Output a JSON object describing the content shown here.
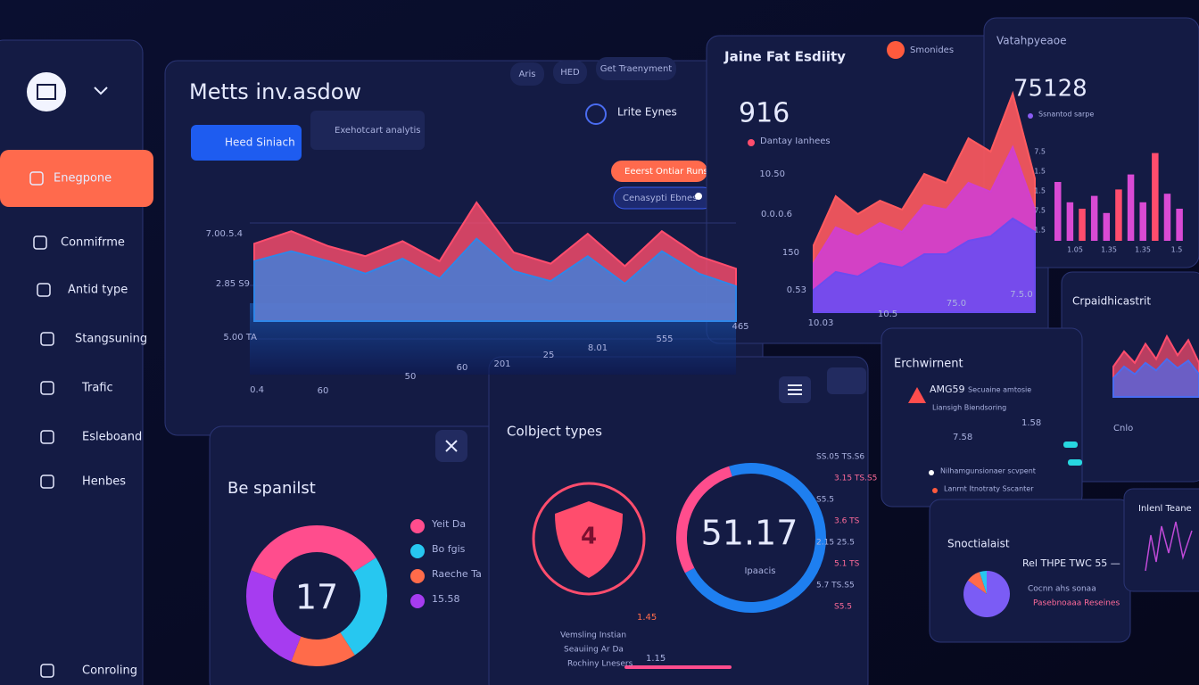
{
  "sidebar": {
    "items": [
      "Enegpone",
      "Conmifrme",
      "Antid type",
      "Stangsuning",
      "Trafic",
      "Esleboand",
      "Henbes",
      "Conroling"
    ]
  },
  "main_panel": {
    "title": "Metts inv.asdow",
    "buttons": [
      "Heed Siniach",
      "Exehotcart analytis"
    ],
    "chips": [
      "Aris",
      "HED",
      "Get Traenyment"
    ],
    "dropdown": "Lrite Eynes",
    "chart": {
      "ylim": [
        0,
        100
      ],
      "y_labels": [
        "7.00.5.4",
        "2.85 S9",
        "5.00 TA",
        "0.4"
      ],
      "x_labels": [
        "60",
        "50",
        "60",
        "201",
        "25",
        "8.01",
        "555",
        "465"
      ],
      "series": [
        {
          "name": "Eeerst Ontiar Runst",
          "color": "#ff4d6d",
          "values": [
            62,
            72,
            60,
            52,
            64,
            48,
            95,
            55,
            46,
            70,
            44,
            72,
            52,
            42
          ]
        },
        {
          "name": "Cenasypti Ebnes",
          "color": "#2f86e8",
          "values": [
            48,
            56,
            48,
            38,
            50,
            34,
            66,
            40,
            32,
            52,
            30,
            56,
            38,
            28
          ]
        }
      ]
    }
  },
  "activity_panel": {
    "title": "Jaine Fat Esdiity",
    "badge": "Smonides",
    "value": "916",
    "subtitle": "Dantay Ianhees",
    "chart": {
      "ylim": [
        0,
        100
      ],
      "y_labels": [
        "10.50",
        "0.0.0.6",
        "150",
        "0.53"
      ],
      "x_labels": [
        "10.03",
        "10.5",
        "75.0",
        "7.5.0"
      ],
      "series": [
        {
          "color": "#ff5a5f",
          "values": [
            30,
            52,
            44,
            50,
            46,
            62,
            58,
            78,
            72,
            98,
            60
          ]
        },
        {
          "color": "#d03fd0",
          "values": [
            22,
            38,
            34,
            40,
            36,
            48,
            46,
            58,
            54,
            74,
            46
          ]
        },
        {
          "color": "#6b4cf0",
          "values": [
            10,
            18,
            16,
            22,
            20,
            26,
            26,
            32,
            34,
            42,
            36
          ]
        }
      ]
    }
  },
  "stats_panel": {
    "title": "Vatahpyeaoe",
    "value": "75128",
    "subtitle": "Ssnantod sarpe",
    "chart": {
      "ylim": [
        0,
        100
      ],
      "y_labels": [
        "7.5",
        "1.5",
        "1.5",
        "7.5",
        "1.5"
      ],
      "x_labels": [
        "1.05",
        "1.35",
        "1.35",
        "1.5"
      ],
      "color": "#d94ad4",
      "values": [
        55,
        36,
        30,
        42,
        26,
        48,
        62,
        36,
        82,
        44,
        30
      ]
    }
  },
  "specialist_panel": {
    "title": "Be spanilst",
    "center_value": "17",
    "segments": [
      {
        "label": "Yeit Da",
        "value": 35,
        "color": "#ff4d8d"
      },
      {
        "label": "Bo fgis",
        "value": 25,
        "color": "#27c7f0"
      },
      {
        "label": "Raeche Ta",
        "value": 15,
        "color": "#ff6b4a"
      },
      {
        "label": "15.58",
        "value": 25,
        "color": "#a63cf0"
      }
    ]
  },
  "object_panel": {
    "title": "Colbject types",
    "shield_value": "4",
    "ring_value": "51.17",
    "ring_caption": "Ipaacis",
    "ring_segments": [
      {
        "value": 72,
        "color": "#1e7ff0"
      },
      {
        "value": 28,
        "color": "#ff4d8d"
      }
    ],
    "right_labels": [
      "SS.05 TS.S6",
      "3.15 TS.S5",
      "S5.5",
      "3.6 TS",
      "2.15 25.5",
      "5.1 TS",
      "5.7 TS.S5",
      "S5.5"
    ],
    "bottom_labels": [
      "Vemsling Instian",
      "Seauiing Ar Da",
      "Rochiny Lnesers"
    ],
    "bottom_values": [
      "1.45",
      "1.15"
    ]
  },
  "environment_panel": {
    "title": "Erchwirnent",
    "alert": "AMG59",
    "lines": [
      "Secuaine amtosie",
      "Liansigh Biendsoring"
    ],
    "values": [
      "7.58",
      "1.58"
    ],
    "items": [
      "Nilhamgunsionaer scvpent",
      "Lanrnt Itnotraty Sscanter"
    ]
  },
  "crp_panel": {
    "title": "Crpaidhicastrit",
    "label": "Cnlo",
    "chart": {
      "ylim": [
        0,
        100
      ],
      "series": [
        {
          "color": "#ff4d6d",
          "values": [
            40,
            60,
            45,
            70,
            50,
            80,
            55,
            75,
            45
          ]
        },
        {
          "color": "#4a6cf0",
          "values": [
            25,
            40,
            30,
            45,
            35,
            50,
            38,
            48,
            30
          ]
        }
      ]
    }
  },
  "social_panel": {
    "title": "Snoctialaist",
    "headline": "Rel THPE TWC 55 —",
    "lines": [
      "Cocnn ahs sonaa",
      "Pasebnoaaa Reseines"
    ],
    "pie": [
      {
        "value": 85,
        "color": "#7b5cf5"
      },
      {
        "value": 10,
        "color": "#ff6b4a"
      },
      {
        "value": 5,
        "color": "#27c7f0"
      }
    ]
  },
  "inline_panel": {
    "title": "Inlenl Teane"
  }
}
